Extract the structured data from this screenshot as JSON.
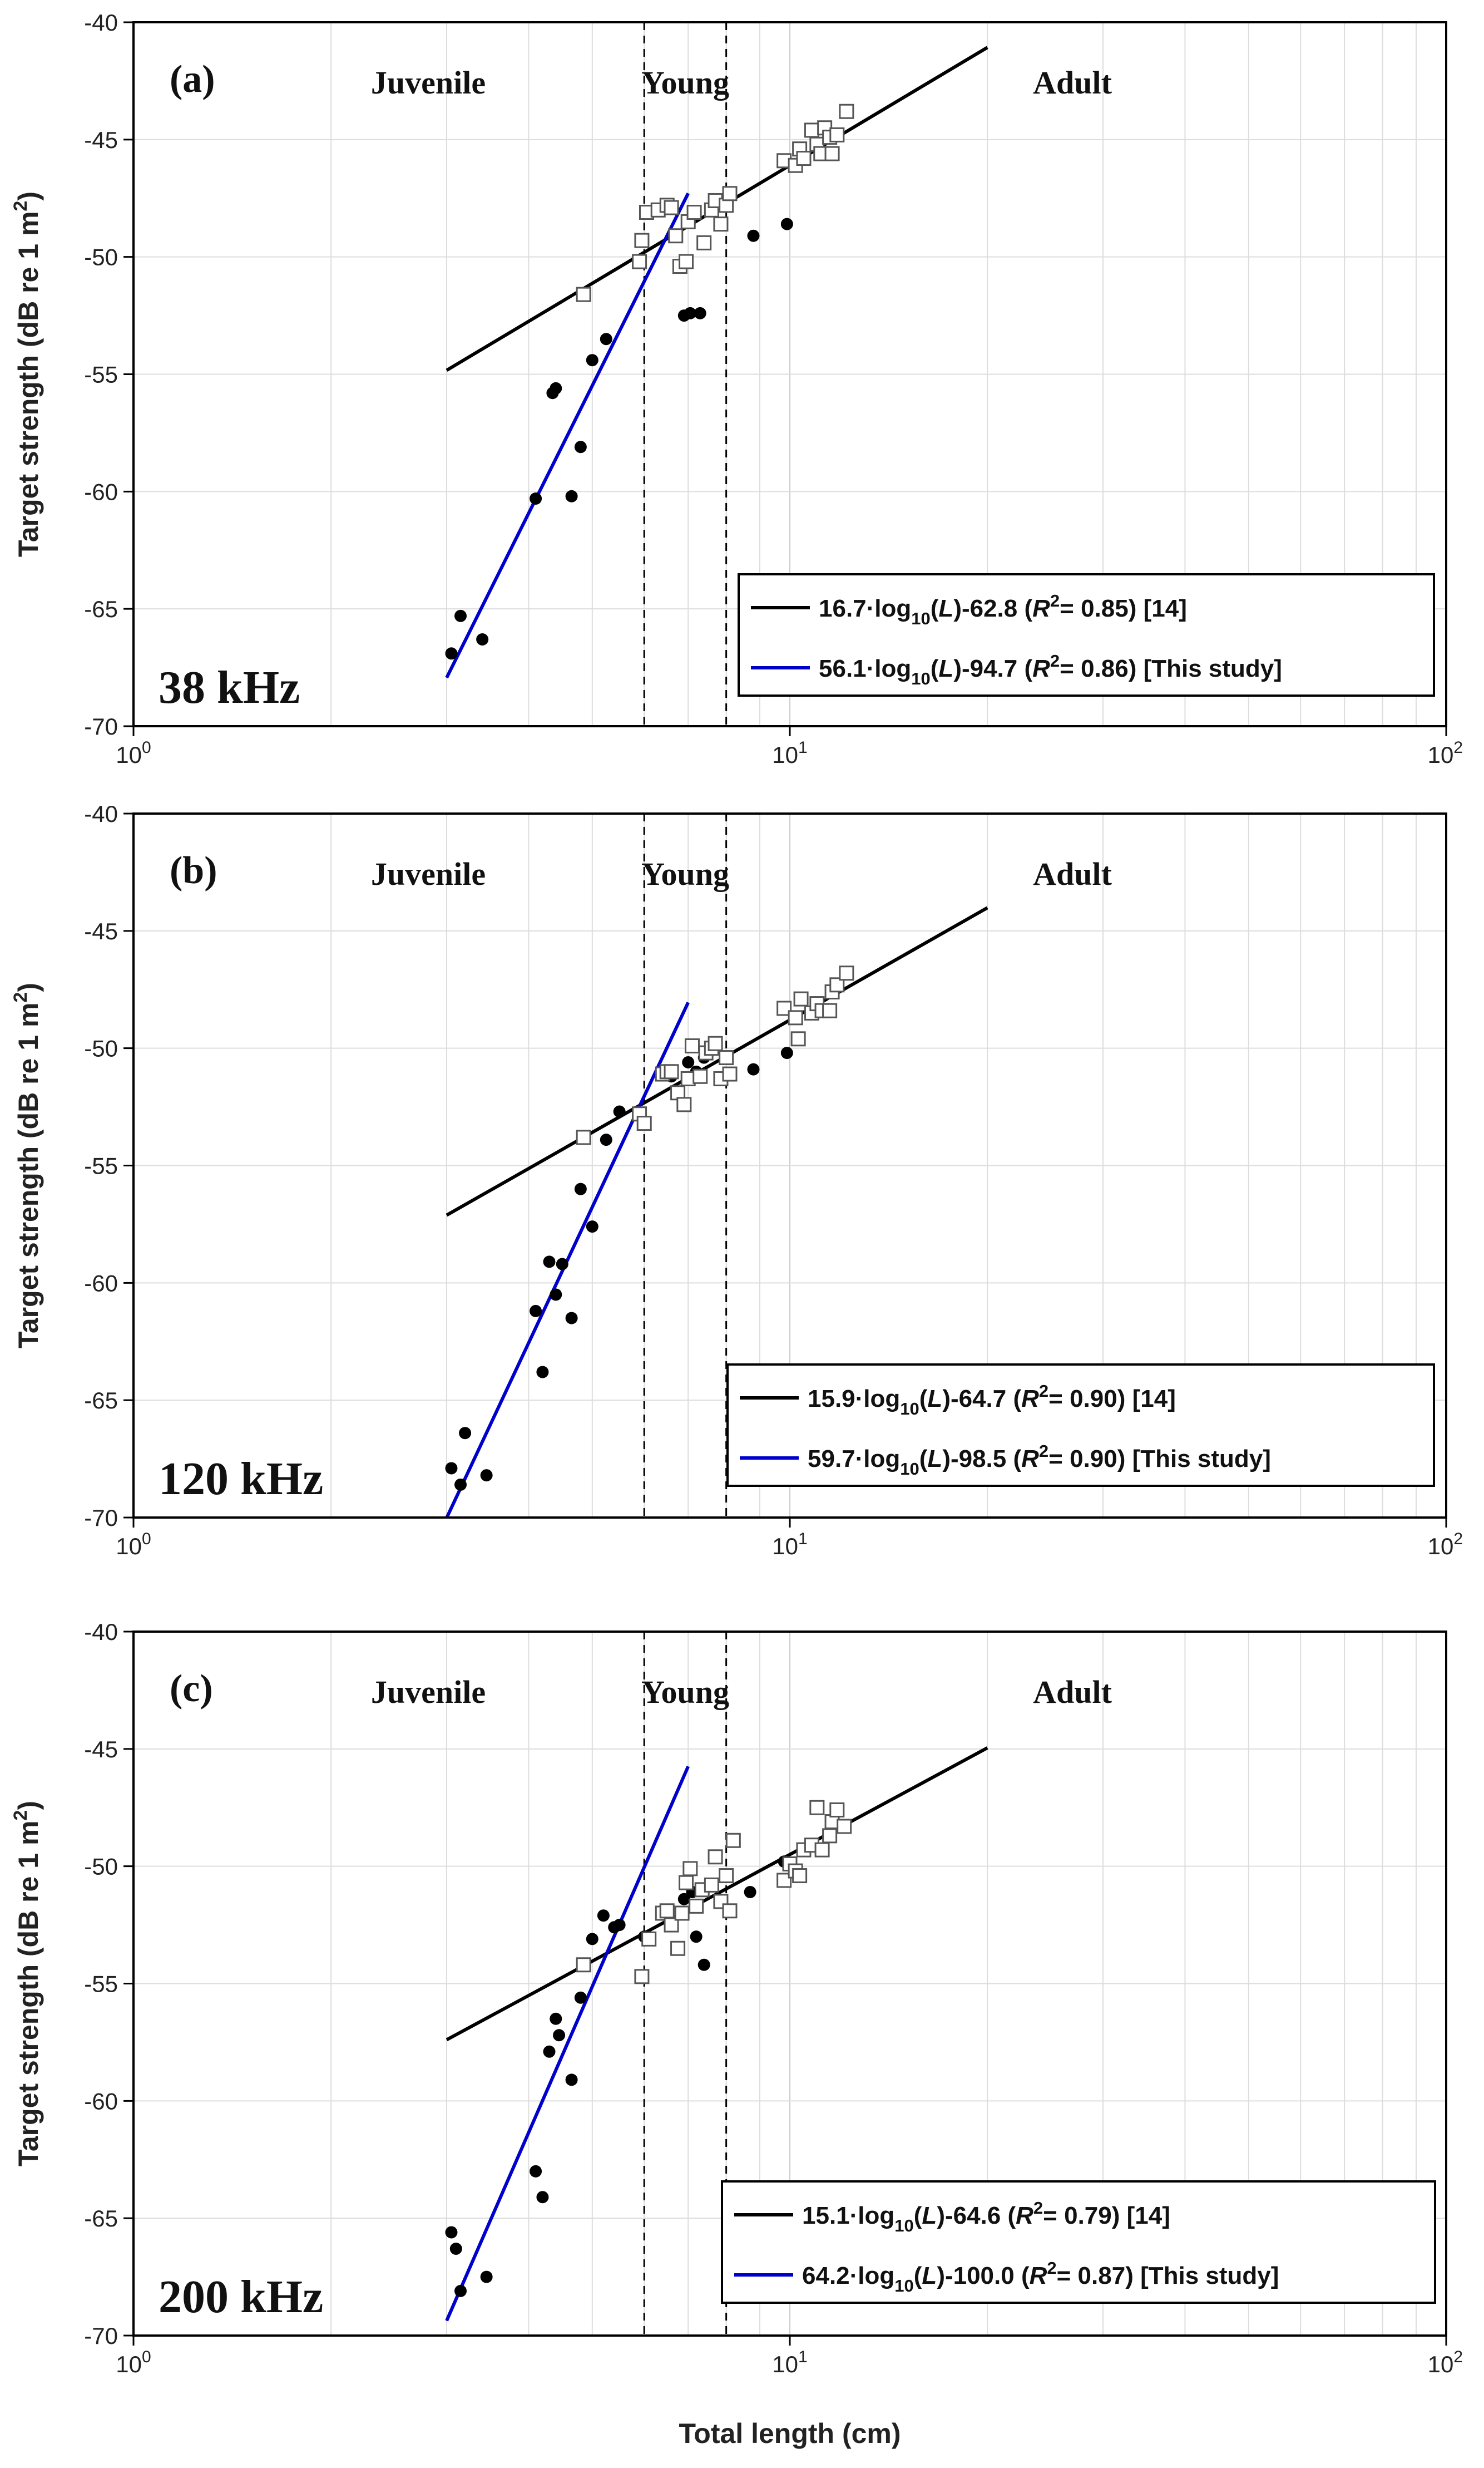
{
  "chart_data": [
    {
      "type": "scatter",
      "panel_label": "(a)",
      "frequency_label": "38 kHz",
      "x_scale": "log",
      "xlim": [
        1,
        100
      ],
      "ylim": [
        -70,
        -40
      ],
      "x_ticks": [
        {
          "base": "10",
          "exp": "0"
        },
        {
          "base": "10",
          "exp": "1"
        },
        {
          "base": "10",
          "exp": "2"
        }
      ],
      "y_ticks": [
        "-40",
        "-45",
        "-50",
        "-55",
        "-60",
        "-65",
        "-70"
      ],
      "ylabel": "Target strength (dB re 1 m",
      "ylabel_sup": "2",
      "ylabel_end": ")",
      "stage_labels": [
        "Juvenile",
        "Young",
        "Adult"
      ],
      "stage_boundaries_cm": [
        6,
        8
      ],
      "series": [
        {
          "name": "filled",
          "marker": "filled-circle",
          "points": [
            [
              3.05,
              -66.9
            ],
            [
              3.15,
              -65.3
            ],
            [
              3.4,
              -66.3
            ],
            [
              4.1,
              -60.3
            ],
            [
              4.35,
              -55.8
            ],
            [
              4.4,
              -55.6
            ],
            [
              4.65,
              -60.2
            ],
            [
              4.8,
              -58.1
            ],
            [
              5.0,
              -54.4
            ],
            [
              5.25,
              -53.5
            ],
            [
              6.9,
              -52.5
            ],
            [
              7.05,
              -52.4
            ],
            [
              7.3,
              -52.4
            ],
            [
              8.8,
              -49.1
            ],
            [
              9.9,
              -48.6
            ]
          ]
        },
        {
          "name": "open",
          "marker": "open-square",
          "points": [
            [
              4.85,
              -51.6
            ],
            [
              5.9,
              -50.2
            ],
            [
              5.95,
              -49.3
            ],
            [
              6.05,
              -48.1
            ],
            [
              6.3,
              -48.0
            ],
            [
              6.5,
              -47.8
            ],
            [
              6.6,
              -47.9
            ],
            [
              6.7,
              -49.1
            ],
            [
              6.8,
              -50.4
            ],
            [
              6.95,
              -50.2
            ],
            [
              7.0,
              -48.5
            ],
            [
              7.15,
              -48.1
            ],
            [
              7.4,
              -49.4
            ],
            [
              7.6,
              -48.0
            ],
            [
              7.7,
              -47.6
            ],
            [
              7.85,
              -48.6
            ],
            [
              8.0,
              -47.8
            ],
            [
              8.1,
              -47.3
            ],
            [
              9.8,
              -45.9
            ],
            [
              10.2,
              -46.1
            ],
            [
              10.35,
              -45.4
            ],
            [
              10.5,
              -45.8
            ],
            [
              10.8,
              -44.6
            ],
            [
              11.0,
              -45.2
            ],
            [
              11.15,
              -45.6
            ],
            [
              11.3,
              -44.5
            ],
            [
              11.5,
              -44.9
            ],
            [
              11.6,
              -45.6
            ],
            [
              11.8,
              -44.8
            ],
            [
              12.2,
              -43.8
            ]
          ]
        }
      ],
      "lines": [
        {
          "name": "fit_14",
          "color": "#000000",
          "slope": 16.7,
          "intercept": -62.8,
          "x_range": [
            3,
            20
          ],
          "legend_label": "16.7·log",
          "legend_sub": "10",
          "legend_mid": "(",
          "legend_var": "L",
          "legend_after": ")-62.8 (",
          "legend_r": "R",
          "legend_sup": "2",
          "legend_end": "= 0.85) [14]"
        },
        {
          "name": "fit_this_study",
          "color": "#0000cc",
          "slope": 56.1,
          "intercept": -94.7,
          "x_range": [
            3,
            7
          ],
          "legend_label": "56.1·log",
          "legend_sub": "10",
          "legend_mid": "(",
          "legend_var": "L",
          "legend_after": ")-94.7 (",
          "legend_r": "R",
          "legend_sup": "2",
          "legend_end": "= 0.86) [This study]"
        }
      ]
    },
    {
      "type": "scatter",
      "panel_label": "(b)",
      "frequency_label": "120 kHz",
      "x_scale": "log",
      "xlim": [
        1,
        100
      ],
      "ylim": [
        -70,
        -40
      ],
      "x_ticks": [
        {
          "base": "10",
          "exp": "0"
        },
        {
          "base": "10",
          "exp": "1"
        },
        {
          "base": "10",
          "exp": "2"
        }
      ],
      "y_ticks": [
        "-40",
        "-45",
        "-50",
        "-55",
        "-60",
        "-65",
        "-70"
      ],
      "ylabel": "Target strength (dB re 1 m",
      "ylabel_sup": "2",
      "ylabel_end": ")",
      "stage_labels": [
        "Juvenile",
        "Young",
        "Adult"
      ],
      "stage_boundaries_cm": [
        6,
        8
      ],
      "series": [
        {
          "name": "filled",
          "marker": "filled-circle",
          "points": [
            [
              3.05,
              -67.9
            ],
            [
              3.15,
              -68.6
            ],
            [
              3.2,
              -66.4
            ],
            [
              3.45,
              -68.2
            ],
            [
              4.1,
              -61.2
            ],
            [
              4.2,
              -63.8
            ],
            [
              4.3,
              -59.1
            ],
            [
              4.4,
              -60.5
            ],
            [
              4.5,
              -59.2
            ],
            [
              4.65,
              -61.5
            ],
            [
              4.8,
              -56.0
            ],
            [
              5.0,
              -57.6
            ],
            [
              5.25,
              -53.9
            ],
            [
              5.5,
              -52.7
            ],
            [
              6.6,
              -51.2
            ],
            [
              7.0,
              -50.6
            ],
            [
              7.2,
              -51.0
            ],
            [
              7.4,
              -50.4
            ],
            [
              8.8,
              -50.9
            ],
            [
              9.9,
              -50.2
            ]
          ]
        },
        {
          "name": "open",
          "marker": "open-square",
          "points": [
            [
              4.85,
              -53.8
            ],
            [
              5.9,
              -52.8
            ],
            [
              6.0,
              -53.2
            ],
            [
              6.4,
              -51.1
            ],
            [
              6.5,
              -51.0
            ],
            [
              6.6,
              -51.0
            ],
            [
              6.75,
              -51.9
            ],
            [
              6.9,
              -52.4
            ],
            [
              7.0,
              -51.3
            ],
            [
              7.1,
              -49.9
            ],
            [
              7.3,
              -51.2
            ],
            [
              7.45,
              -50.2
            ],
            [
              7.6,
              -50.0
            ],
            [
              7.7,
              -49.8
            ],
            [
              7.85,
              -51.3
            ],
            [
              8.0,
              -50.4
            ],
            [
              8.1,
              -51.1
            ],
            [
              9.8,
              -48.3
            ],
            [
              10.2,
              -48.7
            ],
            [
              10.3,
              -49.6
            ],
            [
              10.4,
              -47.9
            ],
            [
              10.8,
              -48.5
            ],
            [
              11.0,
              -48.1
            ],
            [
              11.2,
              -48.4
            ],
            [
              11.5,
              -48.4
            ],
            [
              11.6,
              -47.6
            ],
            [
              11.8,
              -47.3
            ],
            [
              12.2,
              -46.8
            ]
          ]
        }
      ],
      "lines": [
        {
          "name": "fit_14",
          "color": "#000000",
          "slope": 15.9,
          "intercept": -64.7,
          "x_range": [
            3,
            20
          ],
          "legend_label": "15.9·log",
          "legend_sub": "10",
          "legend_mid": "(",
          "legend_var": "L",
          "legend_after": ")-64.7 (",
          "legend_r": "R",
          "legend_sup": "2",
          "legend_end": "= 0.90) [14]"
        },
        {
          "name": "fit_this_study",
          "color": "#0000cc",
          "slope": 59.7,
          "intercept": -98.5,
          "x_range": [
            3,
            7
          ],
          "legend_label": "59.7·log",
          "legend_sub": "10",
          "legend_mid": "(",
          "legend_var": "L",
          "legend_after": ")-98.5 (",
          "legend_r": "R",
          "legend_sup": "2",
          "legend_end": "= 0.90) [This study]"
        }
      ]
    },
    {
      "type": "scatter",
      "panel_label": "(c)",
      "frequency_label": "200 kHz",
      "x_scale": "log",
      "xlim": [
        1,
        100
      ],
      "ylim": [
        -70,
        -40
      ],
      "x_ticks": [
        {
          "base": "10",
          "exp": "0"
        },
        {
          "base": "10",
          "exp": "1"
        },
        {
          "base": "10",
          "exp": "2"
        }
      ],
      "y_ticks": [
        "-40",
        "-45",
        "-50",
        "-55",
        "-60",
        "-65",
        "-70"
      ],
      "ylabel": "Target strength (dB re 1 m",
      "ylabel_sup": "2",
      "ylabel_end": ")",
      "xlabel": "Total length (cm)",
      "stage_labels": [
        "Juvenile",
        "Young",
        "Adult"
      ],
      "stage_boundaries_cm": [
        6,
        8
      ],
      "series": [
        {
          "name": "filled",
          "marker": "filled-circle",
          "points": [
            [
              3.05,
              -65.6
            ],
            [
              3.1,
              -66.3
            ],
            [
              3.15,
              -68.1
            ],
            [
              3.45,
              -67.5
            ],
            [
              4.1,
              -63.0
            ],
            [
              4.2,
              -64.1
            ],
            [
              4.3,
              -57.9
            ],
            [
              4.4,
              -56.5
            ],
            [
              4.45,
              -57.2
            ],
            [
              4.65,
              -59.1
            ],
            [
              4.8,
              -55.6
            ],
            [
              5.0,
              -53.1
            ],
            [
              5.2,
              -52.1
            ],
            [
              5.4,
              -52.6
            ],
            [
              5.5,
              -52.5
            ],
            [
              6.0,
              -53.0
            ],
            [
              6.5,
              -52.1
            ],
            [
              6.9,
              -51.4
            ],
            [
              7.1,
              -51.1
            ],
            [
              7.2,
              -53.0
            ],
            [
              7.4,
              -54.2
            ],
            [
              8.7,
              -51.1
            ],
            [
              9.8,
              -49.8
            ]
          ]
        },
        {
          "name": "open",
          "marker": "open-square",
          "points": [
            [
              4.85,
              -54.2
            ],
            [
              5.95,
              -54.7
            ],
            [
              6.1,
              -53.1
            ],
            [
              6.4,
              -52.0
            ],
            [
              6.5,
              -51.9
            ],
            [
              6.6,
              -52.5
            ],
            [
              6.75,
              -53.5
            ],
            [
              6.85,
              -52.0
            ],
            [
              6.95,
              -50.7
            ],
            [
              7.05,
              -50.1
            ],
            [
              7.2,
              -51.7
            ],
            [
              7.35,
              -51.0
            ],
            [
              7.6,
              -50.8
            ],
            [
              7.7,
              -49.6
            ],
            [
              7.85,
              -51.5
            ],
            [
              8.0,
              -50.4
            ],
            [
              8.1,
              -51.9
            ],
            [
              8.2,
              -48.9
            ],
            [
              9.8,
              -50.6
            ],
            [
              10.0,
              -49.9
            ],
            [
              10.2,
              -50.2
            ],
            [
              10.35,
              -50.4
            ],
            [
              10.5,
              -49.3
            ],
            [
              10.8,
              -49.1
            ],
            [
              11.0,
              -47.5
            ],
            [
              11.2,
              -49.3
            ],
            [
              11.5,
              -48.7
            ],
            [
              11.6,
              -48.1
            ],
            [
              11.8,
              -47.6
            ],
            [
              12.1,
              -48.3
            ]
          ]
        }
      ],
      "lines": [
        {
          "name": "fit_14",
          "color": "#000000",
          "slope": 15.1,
          "intercept": -64.6,
          "x_range": [
            3,
            20
          ],
          "legend_label": "15.1·log",
          "legend_sub": "10",
          "legend_mid": "(",
          "legend_var": "L",
          "legend_after": ")-64.6 (",
          "legend_r": "R",
          "legend_sup": "2",
          "legend_end": "= 0.79) [14]"
        },
        {
          "name": "fit_this_study",
          "color": "#0000cc",
          "slope": 64.2,
          "intercept": -100.0,
          "x_range": [
            3,
            7
          ],
          "legend_label": "64.2·log",
          "legend_sub": "10",
          "legend_mid": "(",
          "legend_var": "L",
          "legend_after": ")-100.0 (",
          "legend_r": "R",
          "legend_sup": "2",
          "legend_end": "= 0.87) [This study]"
        }
      ]
    }
  ],
  "colors": {
    "black_fit": "#000000",
    "blue_fit": "#0000cc",
    "grid": "#dddddd",
    "frame": "#000000"
  }
}
